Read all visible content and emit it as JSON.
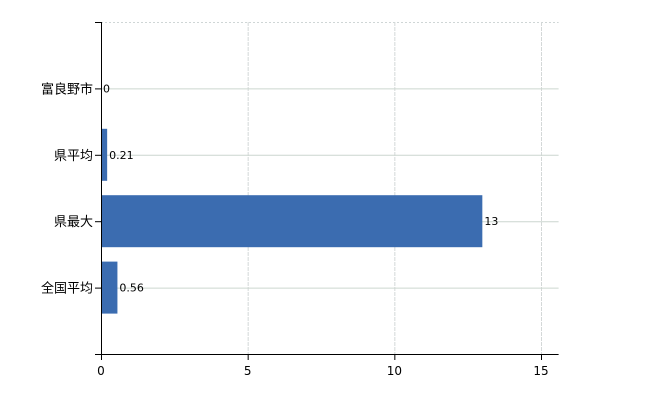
{
  "chart_data": {
    "type": "bar",
    "orientation": "horizontal",
    "categories": [
      "富良野市",
      "県平均",
      "県最大",
      "全国平均"
    ],
    "values": [
      0,
      0.21,
      13,
      0.56
    ],
    "data_labels": [
      "0",
      "0.21",
      "13",
      "0.56"
    ],
    "title": "",
    "xlabel": "",
    "ylabel": "",
    "xlim": [
      0,
      15.6
    ],
    "xticks": [
      0,
      5,
      10,
      15
    ],
    "xtick_labels": [
      "0",
      "5",
      "10",
      "15"
    ],
    "grid": true,
    "legend": "none",
    "bar_color": "#3b6cb0"
  }
}
